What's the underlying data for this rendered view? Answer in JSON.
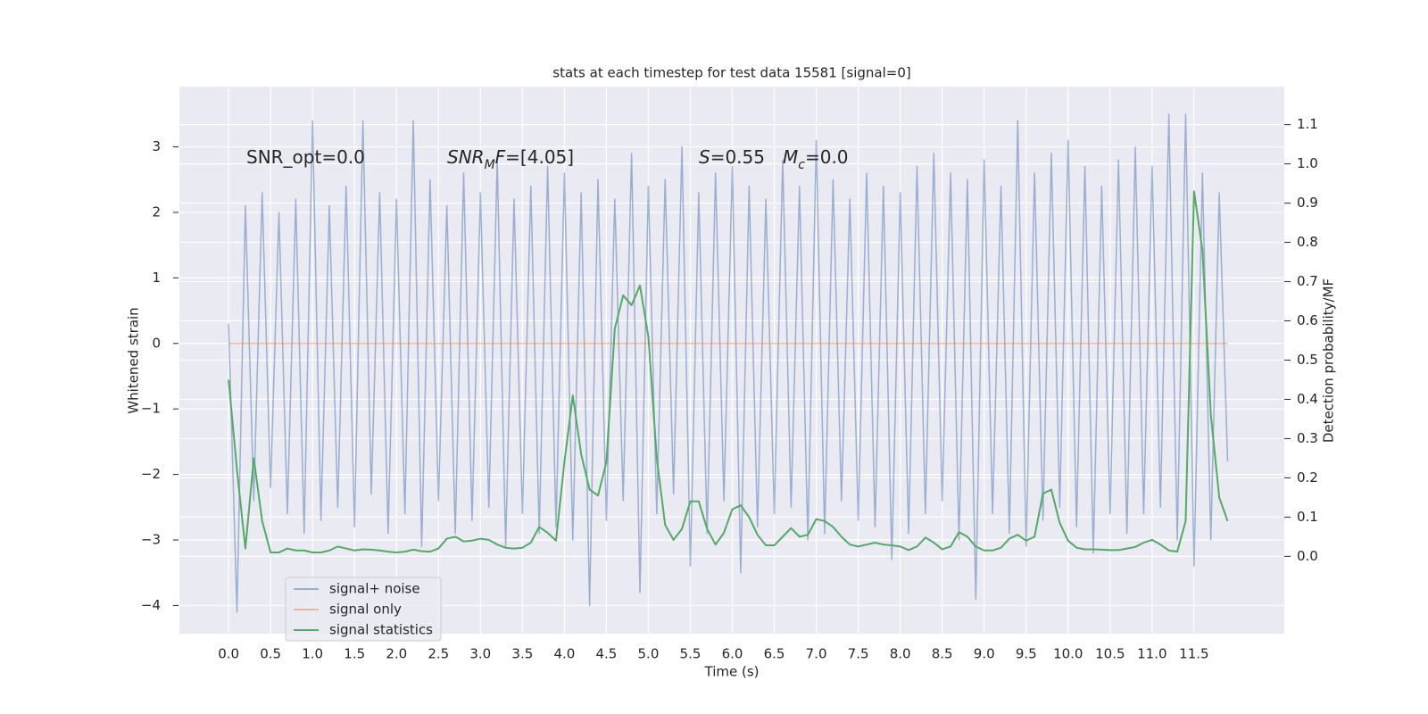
{
  "chart_data": {
    "type": "line",
    "title": "stats at each timestep for test data 15581 [signal=0]",
    "xlabel": "Time (s)",
    "ylabel": "Whitened strain",
    "y2label": "Detection probability/MF",
    "grid": true,
    "legend": "lower left",
    "xlim": [
      -0.586,
      12.575
    ],
    "ylim": [
      -4.43,
      3.92
    ],
    "y2lim": [
      -0.197,
      1.197
    ],
    "xticks": [
      {
        "value": 0,
        "label": "0.0"
      },
      0.5,
      {
        "value": 1,
        "label": "1.0"
      },
      1.5,
      {
        "value": 2,
        "label": "2.0"
      },
      2.5,
      {
        "value": 3,
        "label": "3.0"
      },
      3.5,
      {
        "value": 4,
        "label": "4.0"
      },
      4.5,
      {
        "value": 5,
        "label": "5.0"
      },
      5.5,
      {
        "value": 6,
        "label": "6.0"
      },
      6.5,
      {
        "value": 7,
        "label": "7.0"
      },
      7.5,
      {
        "value": 8,
        "label": "8.0"
      },
      8.5,
      {
        "value": 9,
        "label": "9.0"
      },
      9.5,
      {
        "value": 10,
        "label": "10.0"
      },
      10.5,
      {
        "value": 11,
        "label": "11.0"
      },
      11.5
    ],
    "yticks": [
      {
        "value": -4,
        "label": "−4"
      },
      {
        "value": -3,
        "label": "−3"
      },
      {
        "value": -2,
        "label": "−2"
      },
      {
        "value": -1,
        "label": "−1"
      },
      0,
      1,
      2,
      3
    ],
    "y2ticks": [
      {
        "value": 0,
        "label": "0.0"
      },
      0.1,
      0.2,
      0.3,
      0.4,
      0.5,
      0.6,
      0.7,
      0.8,
      0.9,
      {
        "value": 1,
        "label": "1.0"
      },
      1.1
    ],
    "annotations": [
      {
        "parts": [
          {
            "text": "SNR_opt=0.0"
          }
        ]
      },
      {
        "parts": [
          {
            "text": "SNR",
            "italic": true
          },
          {
            "text": "M",
            "italic": true,
            "sub": true
          },
          {
            "text": "F",
            "italic": true
          },
          {
            "text": "=[4.05]"
          }
        ]
      },
      {
        "parts": [
          {
            "text": "S",
            "italic": true
          },
          {
            "text": "=0.55"
          }
        ]
      },
      {
        "parts": [
          {
            "text": "M",
            "italic": true
          },
          {
            "text": "c",
            "italic": true,
            "sub": true
          },
          {
            "text": "=0.0"
          }
        ]
      }
    ],
    "x": [
      0,
      0.1,
      0.2,
      0.3,
      0.4,
      0.5,
      0.6,
      0.7,
      0.8,
      0.9,
      1,
      1.1,
      1.2,
      1.3,
      1.4,
      1.5,
      1.6,
      1.7,
      1.8,
      1.9,
      2,
      2.1,
      2.2,
      2.3,
      2.4,
      2.5,
      2.6,
      2.7,
      2.8,
      2.9,
      3,
      3.1,
      3.2,
      3.3,
      3.4,
      3.5,
      3.6,
      3.7,
      3.8,
      3.9,
      4,
      4.1,
      4.2,
      4.3,
      4.4,
      4.5,
      4.6,
      4.7,
      4.8,
      4.9,
      5,
      5.1,
      5.2,
      5.3,
      5.4,
      5.5,
      5.6,
      5.7,
      5.8,
      5.9,
      6,
      6.1,
      6.2,
      6.3,
      6.4,
      6.5,
      6.6,
      6.7,
      6.8,
      6.9,
      7,
      7.1,
      7.2,
      7.3,
      7.4,
      7.5,
      7.6,
      7.7,
      7.8,
      7.9,
      8,
      8.1,
      8.2,
      8.3,
      8.4,
      8.5,
      8.6,
      8.7,
      8.8,
      8.9,
      9,
      9.1,
      9.2,
      9.3,
      9.4,
      9.5,
      9.6,
      9.7,
      9.8,
      9.9,
      10,
      10.1,
      10.2,
      10.3,
      10.4,
      10.5,
      10.6,
      10.7,
      10.8,
      10.9,
      11,
      11.1,
      11.2,
      11.3,
      11.4,
      11.5,
      11.6,
      11.7,
      11.8,
      11.9
    ],
    "series": [
      {
        "name": "signal+ noise",
        "color": "#4c72b0",
        "alpha": 0.5,
        "values": [
          0.3,
          -4.1,
          2.1,
          -2.4,
          2.3,
          -2.2,
          2.0,
          -2.6,
          2.2,
          -2.9,
          3.4,
          -2.7,
          2.1,
          -2.5,
          2.4,
          -2.8,
          3.4,
          -2.3,
          2.3,
          -2.9,
          2.2,
          -2.6,
          3.4,
          -3.1,
          2.5,
          -2.4,
          2.1,
          -2.9,
          2.6,
          -2.7,
          2.3,
          -2.5,
          2.8,
          -3.1,
          2.2,
          -2.6,
          2.4,
          -2.9,
          2.7,
          -2.8,
          2.6,
          -3.0,
          2.3,
          -4.0,
          2.5,
          -2.7,
          2.2,
          -2.4,
          2.9,
          -3.8,
          2.4,
          -2.6,
          2.5,
          -2.3,
          3.0,
          -3.4,
          2.3,
          -2.9,
          2.6,
          -2.4,
          2.7,
          -3.5,
          2.4,
          -2.8,
          2.2,
          -2.6,
          2.8,
          -2.5,
          2.4,
          -3.0,
          3.1,
          -2.9,
          2.5,
          -2.4,
          2.2,
          -2.7,
          2.6,
          -2.8,
          2.4,
          -3.3,
          2.3,
          -2.9,
          2.7,
          -2.6,
          2.9,
          -2.4,
          2.6,
          -3.0,
          2.5,
          -3.9,
          2.8,
          -2.6,
          2.4,
          -2.9,
          3.4,
          -3.1,
          2.6,
          -2.7,
          2.9,
          -2.5,
          3.1,
          -2.8,
          2.7,
          -3.2,
          2.4,
          -2.6,
          2.8,
          -2.9,
          3.0,
          -2.6,
          2.7,
          -2.5,
          3.5,
          -3.0,
          3.5,
          -3.4,
          2.6,
          -3.0,
          2.3,
          -1.8
        ]
      },
      {
        "name": "signal only",
        "color": "#dd8452",
        "alpha": 0.5,
        "values": [
          0,
          0,
          0,
          0,
          0,
          0,
          0,
          0,
          0,
          0,
          0,
          0,
          0,
          0,
          0,
          0,
          0,
          0,
          0,
          0,
          0,
          0,
          0,
          0,
          0,
          0,
          0,
          0,
          0,
          0,
          0,
          0,
          0,
          0,
          0,
          0,
          0,
          0,
          0,
          0,
          0,
          0,
          0,
          0,
          0,
          0,
          0,
          0,
          0,
          0,
          0,
          0,
          0,
          0,
          0,
          0,
          0,
          0,
          0,
          0,
          0,
          0,
          0,
          0,
          0,
          0,
          0,
          0,
          0,
          0,
          0,
          0,
          0,
          0,
          0,
          0,
          0,
          0,
          0,
          0,
          0,
          0,
          0,
          0,
          0,
          0,
          0,
          0,
          0,
          0,
          0,
          0,
          0,
          0,
          0,
          0,
          0,
          0,
          0,
          0,
          0,
          0,
          0,
          0,
          0,
          0,
          0,
          0,
          0,
          0,
          0,
          0,
          0,
          0,
          0,
          0,
          0,
          0,
          0,
          0
        ]
      },
      {
        "name": "signal statistics",
        "color": "#55a868",
        "alpha": 1,
        "axis": "y2",
        "values": [
          0.45,
          0.22,
          0.02,
          0.25,
          0.09,
          0.01,
          0.01,
          0.02,
          0.015,
          0.015,
          0.01,
          0.01,
          0.015,
          0.025,
          0.02,
          0.015,
          0.018,
          0.017,
          0.015,
          0.012,
          0.01,
          0.012,
          0.017,
          0.013,
          0.012,
          0.02,
          0.045,
          0.05,
          0.038,
          0.04,
          0.045,
          0.042,
          0.03,
          0.022,
          0.02,
          0.022,
          0.035,
          0.075,
          0.06,
          0.04,
          0.24,
          0.41,
          0.26,
          0.17,
          0.155,
          0.24,
          0.58,
          0.665,
          0.64,
          0.69,
          0.56,
          0.25,
          0.08,
          0.042,
          0.07,
          0.14,
          0.14,
          0.07,
          0.03,
          0.06,
          0.12,
          0.13,
          0.1,
          0.055,
          0.028,
          0.028,
          0.05,
          0.072,
          0.05,
          0.055,
          0.095,
          0.09,
          0.075,
          0.05,
          0.03,
          0.025,
          0.03,
          0.035,
          0.03,
          0.028,
          0.025,
          0.016,
          0.025,
          0.048,
          0.035,
          0.018,
          0.025,
          0.062,
          0.05,
          0.025,
          0.015,
          0.015,
          0.022,
          0.045,
          0.055,
          0.04,
          0.05,
          0.16,
          0.17,
          0.085,
          0.04,
          0.022,
          0.018,
          0.018,
          0.017,
          0.016,
          0.016,
          0.02,
          0.024,
          0.035,
          0.042,
          0.03,
          0.015,
          0.012,
          0.09,
          0.93,
          0.78,
          0.36,
          0.15,
          0.09
        ]
      }
    ]
  }
}
